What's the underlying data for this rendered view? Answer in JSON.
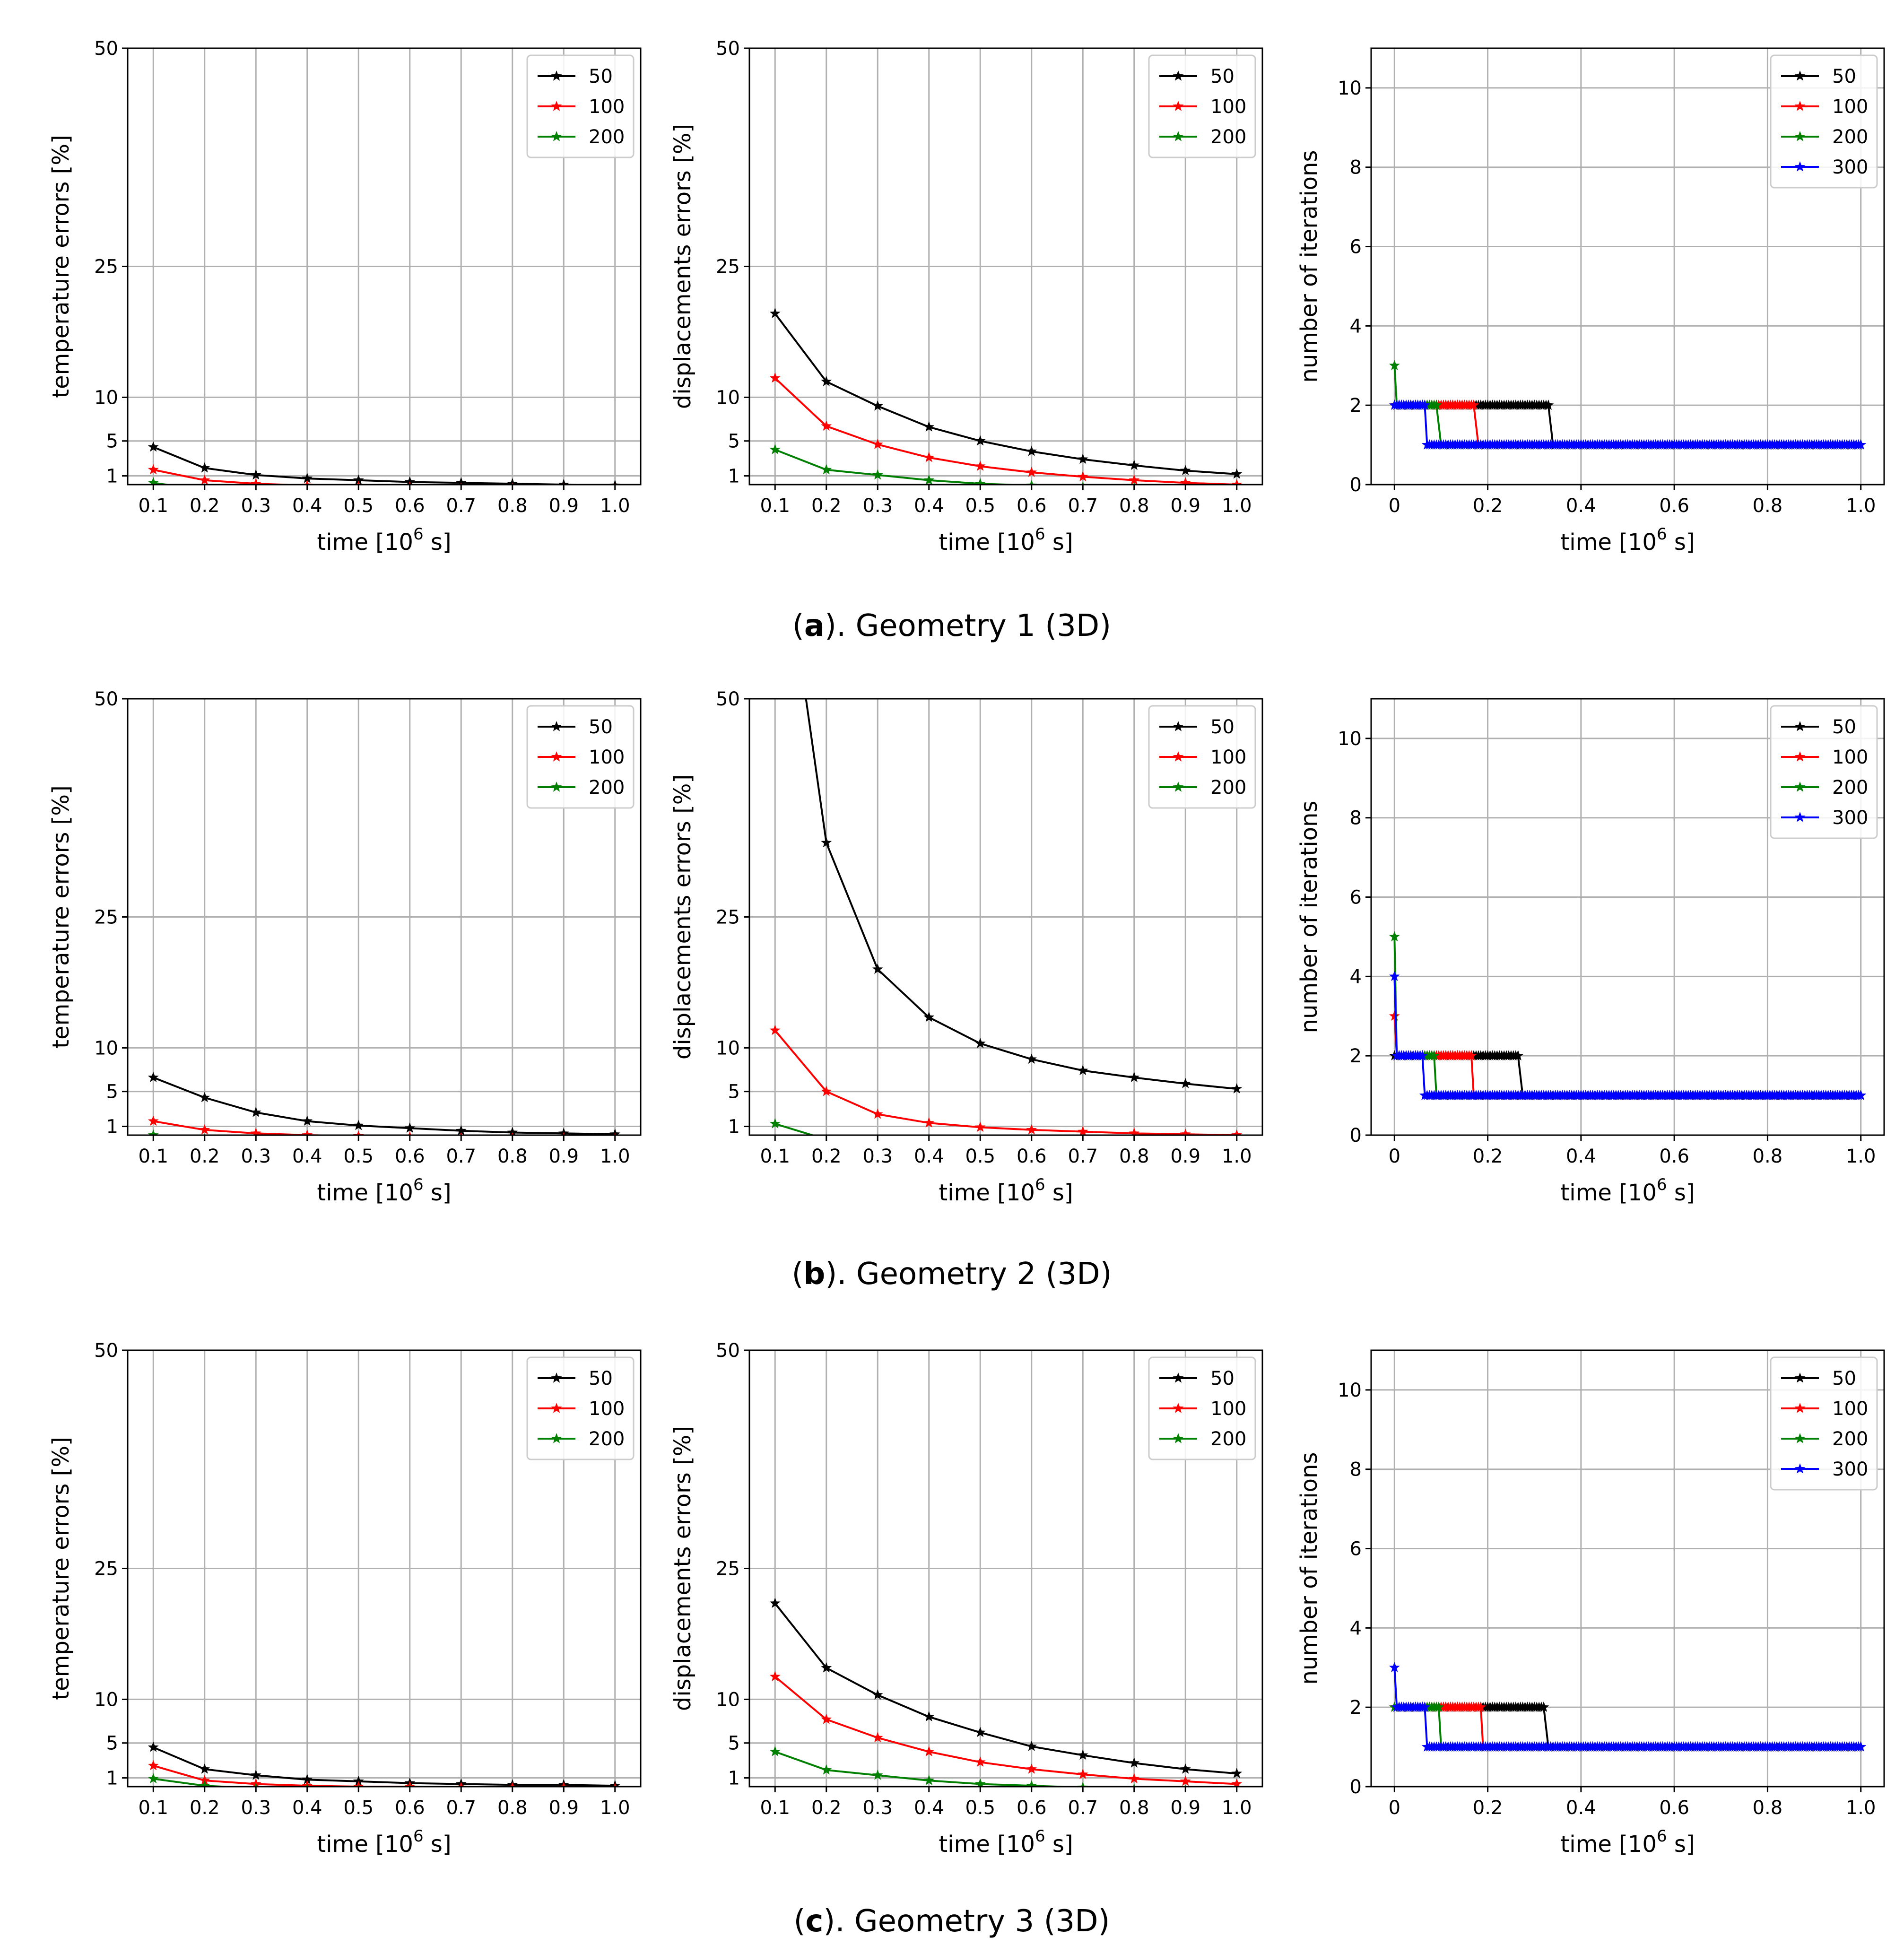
{
  "colors": {
    "50": "#000000",
    "100": "#ff0000",
    "200": "#008000",
    "300": "#0000ff"
  },
  "legend_labels": [
    "50",
    "100",
    "200",
    "300"
  ],
  "axis_text": {
    "temperature_ylabel": "temperature errors [%]",
    "displacement_ylabel": "displacements errors [%]",
    "iterations_ylabel": "number of iterations",
    "xlabel_prefix": "time [10",
    "xlabel_exponent": "6",
    "xlabel_suffix": " s]"
  },
  "captions": [
    {
      "letter": "a",
      "text": "). Geometry 1 (3D)"
    },
    {
      "letter": "b",
      "text": "). Geometry 2 (3D)"
    },
    {
      "letter": "c",
      "text": "). Geometry 3 (3D)"
    }
  ],
  "chart_data": [
    {
      "type": "line",
      "panel": "a-temperature",
      "xlabel": "time [10^6 s]",
      "ylabel": "temperature errors [%]",
      "xlim": [
        0.05,
        1.05
      ],
      "ylim": [
        0,
        50
      ],
      "x_ticks": [
        0.1,
        0.2,
        0.3,
        0.4,
        0.5,
        0.6,
        0.7,
        0.8,
        0.9,
        1.0
      ],
      "x_tick_labels": [
        "0.1",
        "0.2",
        "0.3",
        "0.4",
        "0.5",
        "0.6",
        "0.7",
        "0.8",
        "0.9",
        "1.0"
      ],
      "y_ticks": [
        1,
        5,
        10,
        25,
        50
      ],
      "y_tick_labels": [
        "1",
        "5",
        "10",
        "25",
        "50"
      ],
      "grid": true,
      "legend": "top-right",
      "x": [
        0.1,
        0.2,
        0.3,
        0.4,
        0.5,
        0.6,
        0.7,
        0.8,
        0.9,
        1.0
      ],
      "series": [
        {
          "name": "50",
          "color": "#000000",
          "values": [
            4.3,
            1.9,
            1.1,
            0.7,
            0.5,
            0.3,
            0.2,
            0.1,
            0.0,
            -0.1
          ]
        },
        {
          "name": "100",
          "color": "#ff0000",
          "values": [
            1.7,
            0.5,
            0.1,
            -0.1,
            -0.2,
            -0.3,
            -0.4,
            -0.4,
            -0.5,
            -0.5
          ]
        },
        {
          "name": "200",
          "color": "#008000",
          "values": [
            0.2,
            -0.6,
            -0.8,
            -0.9,
            -1.0,
            -1.0,
            -1.1,
            -1.1,
            -1.1,
            -1.2
          ]
        }
      ]
    },
    {
      "type": "line",
      "panel": "a-displacements",
      "xlabel": "time [10^6 s]",
      "ylabel": "displacements errors [%]",
      "xlim": [
        0.05,
        1.05
      ],
      "ylim": [
        0,
        50
      ],
      "x_ticks": [
        0.1,
        0.2,
        0.3,
        0.4,
        0.5,
        0.6,
        0.7,
        0.8,
        0.9,
        1.0
      ],
      "x_tick_labels": [
        "0.1",
        "0.2",
        "0.3",
        "0.4",
        "0.5",
        "0.6",
        "0.7",
        "0.8",
        "0.9",
        "1.0"
      ],
      "y_ticks": [
        1,
        5,
        10,
        25,
        50
      ],
      "y_tick_labels": [
        "1",
        "5",
        "10",
        "25",
        "50"
      ],
      "grid": true,
      "legend": "top-right",
      "x": [
        0.1,
        0.2,
        0.3,
        0.4,
        0.5,
        0.6,
        0.7,
        0.8,
        0.9,
        1.0
      ],
      "series": [
        {
          "name": "50",
          "color": "#000000",
          "values": [
            19.6,
            11.8,
            9.0,
            6.6,
            5.0,
            3.8,
            2.9,
            2.2,
            1.6,
            1.2
          ]
        },
        {
          "name": "100",
          "color": "#ff0000",
          "values": [
            12.2,
            6.7,
            4.6,
            3.1,
            2.1,
            1.4,
            0.9,
            0.5,
            0.2,
            0.0
          ]
        },
        {
          "name": "200",
          "color": "#008000",
          "values": [
            4.0,
            1.7,
            1.1,
            0.5,
            0.1,
            -0.1,
            -0.3,
            -0.4,
            -0.5,
            -0.6
          ]
        }
      ]
    },
    {
      "type": "line",
      "panel": "a-iterations",
      "xlabel": "time [10^6 s]",
      "ylabel": "number of iterations",
      "xlim": [
        -0.05,
        1.05
      ],
      "ylim": [
        0,
        11
      ],
      "x_ticks": [
        0,
        0.2,
        0.4,
        0.6,
        0.8,
        1.0
      ],
      "x_tick_labels": [
        "0",
        "0.2",
        "0.4",
        "0.6",
        "0.8",
        "1.0"
      ],
      "y_ticks": [
        0,
        2,
        4,
        6,
        8,
        10
      ],
      "y_tick_labels": [
        "0",
        "2",
        "4",
        "6",
        "8",
        "10"
      ],
      "grid": true,
      "legend": "top-right",
      "series": [
        {
          "name": "50",
          "color": "#000000",
          "points": [
            [
              0.0,
              2
            ],
            [
              0.33,
              2
            ],
            [
              0.34,
              1
            ],
            [
              1.0,
              1
            ]
          ]
        },
        {
          "name": "100",
          "color": "#ff0000",
          "points": [
            [
              0.0,
              2
            ],
            [
              0.17,
              2
            ],
            [
              0.18,
              1
            ],
            [
              1.0,
              1
            ]
          ]
        },
        {
          "name": "200",
          "color": "#008000",
          "points": [
            [
              0.0,
              3
            ],
            [
              0.005,
              2
            ],
            [
              0.09,
              2
            ],
            [
              0.1,
              1
            ],
            [
              1.0,
              1
            ]
          ]
        },
        {
          "name": "300",
          "color": "#0000ff",
          "points": [
            [
              0.0,
              2
            ],
            [
              0.065,
              2
            ],
            [
              0.07,
              1
            ],
            [
              1.0,
              1
            ]
          ]
        }
      ]
    },
    {
      "type": "line",
      "panel": "b-temperature",
      "xlabel": "time [10^6 s]",
      "ylabel": "temperature errors [%]",
      "xlim": [
        0.05,
        1.05
      ],
      "ylim": [
        0,
        50
      ],
      "x_ticks": [
        0.1,
        0.2,
        0.3,
        0.4,
        0.5,
        0.6,
        0.7,
        0.8,
        0.9,
        1.0
      ],
      "x_tick_labels": [
        "0.1",
        "0.2",
        "0.3",
        "0.4",
        "0.5",
        "0.6",
        "0.7",
        "0.8",
        "0.9",
        "1.0"
      ],
      "y_ticks": [
        1,
        5,
        10,
        25,
        50
      ],
      "y_tick_labels": [
        "1",
        "5",
        "10",
        "25",
        "50"
      ],
      "grid": true,
      "legend": "top-right",
      "x": [
        0.1,
        0.2,
        0.3,
        0.4,
        0.5,
        0.6,
        0.7,
        0.8,
        0.9,
        1.0
      ],
      "series": [
        {
          "name": "50",
          "color": "#000000",
          "values": [
            6.6,
            4.3,
            2.6,
            1.6,
            1.1,
            0.8,
            0.5,
            0.3,
            0.2,
            0.1
          ]
        },
        {
          "name": "100",
          "color": "#ff0000",
          "values": [
            1.6,
            0.6,
            0.2,
            0.0,
            -0.1,
            -0.2,
            -0.3,
            -0.3,
            -0.3,
            -0.4
          ]
        },
        {
          "name": "200",
          "color": "#008000",
          "values": [
            0.0,
            -0.5,
            -0.6,
            -0.6,
            -0.7,
            -0.7,
            -0.7,
            -0.7,
            -0.7,
            -0.7
          ]
        }
      ]
    },
    {
      "type": "line",
      "panel": "b-displacements",
      "xlabel": "time [10^6 s]",
      "ylabel": "displacements errors [%]",
      "xlim": [
        0.05,
        1.05
      ],
      "ylim": [
        0,
        50
      ],
      "x_ticks": [
        0.1,
        0.2,
        0.3,
        0.4,
        0.5,
        0.6,
        0.7,
        0.8,
        0.9,
        1.0
      ],
      "x_tick_labels": [
        "0.1",
        "0.2",
        "0.3",
        "0.4",
        "0.5",
        "0.6",
        "0.7",
        "0.8",
        "0.9",
        "1.0"
      ],
      "y_ticks": [
        1,
        5,
        10,
        25,
        50
      ],
      "y_tick_labels": [
        "1",
        "5",
        "10",
        "25",
        "50"
      ],
      "grid": true,
      "legend": "top-right",
      "x": [
        0.1,
        0.2,
        0.3,
        0.4,
        0.5,
        0.6,
        0.7,
        0.8,
        0.9,
        1.0
      ],
      "series": [
        {
          "name": "50",
          "color": "#000000",
          "values": [
            75.0,
            33.5,
            19.0,
            13.5,
            10.5,
            8.7,
            7.4,
            6.6,
            5.9,
            5.3
          ]
        },
        {
          "name": "100",
          "color": "#ff0000",
          "values": [
            12.0,
            5.0,
            2.4,
            1.4,
            0.9,
            0.6,
            0.4,
            0.2,
            0.1,
            0.0
          ]
        },
        {
          "name": "200",
          "color": "#008000",
          "values": [
            1.3,
            -0.5,
            -0.6,
            -0.7,
            -0.7,
            -0.7,
            -0.7,
            -0.7,
            -0.7,
            -0.7
          ]
        }
      ]
    },
    {
      "type": "line",
      "panel": "b-iterations",
      "xlabel": "time [10^6 s]",
      "ylabel": "number of iterations",
      "xlim": [
        -0.05,
        1.05
      ],
      "ylim": [
        0,
        11
      ],
      "x_ticks": [
        0,
        0.2,
        0.4,
        0.6,
        0.8,
        1.0
      ],
      "x_tick_labels": [
        "0",
        "0.2",
        "0.4",
        "0.6",
        "0.8",
        "1.0"
      ],
      "y_ticks": [
        0,
        2,
        4,
        6,
        8,
        10
      ],
      "y_tick_labels": [
        "0",
        "2",
        "4",
        "6",
        "8",
        "10"
      ],
      "grid": true,
      "legend": "top-right",
      "series": [
        {
          "name": "50",
          "color": "#000000",
          "points": [
            [
              0.0,
              2
            ],
            [
              0.265,
              2
            ],
            [
              0.275,
              1
            ],
            [
              1.0,
              1
            ]
          ]
        },
        {
          "name": "100",
          "color": "#ff0000",
          "points": [
            [
              0.0,
              3
            ],
            [
              0.005,
              2
            ],
            [
              0.165,
              2
            ],
            [
              0.17,
              1
            ],
            [
              1.0,
              1
            ]
          ]
        },
        {
          "name": "200",
          "color": "#008000",
          "points": [
            [
              0.0,
              5
            ],
            [
              0.005,
              2
            ],
            [
              0.085,
              2
            ],
            [
              0.09,
              1
            ],
            [
              1.0,
              1
            ]
          ]
        },
        {
          "name": "300",
          "color": "#0000ff",
          "points": [
            [
              0.0,
              4
            ],
            [
              0.005,
              2
            ],
            [
              0.06,
              2
            ],
            [
              0.065,
              1
            ],
            [
              1.0,
              1
            ]
          ]
        }
      ]
    },
    {
      "type": "line",
      "panel": "c-temperature",
      "xlabel": "time [10^6 s]",
      "ylabel": "temperature errors [%]",
      "xlim": [
        0.05,
        1.05
      ],
      "ylim": [
        0,
        50
      ],
      "x_ticks": [
        0.1,
        0.2,
        0.3,
        0.4,
        0.5,
        0.6,
        0.7,
        0.8,
        0.9,
        1.0
      ],
      "x_tick_labels": [
        "0.1",
        "0.2",
        "0.3",
        "0.4",
        "0.5",
        "0.6",
        "0.7",
        "0.8",
        "0.9",
        "1.0"
      ],
      "y_ticks": [
        1,
        5,
        10,
        25,
        50
      ],
      "y_tick_labels": [
        "1",
        "5",
        "10",
        "25",
        "50"
      ],
      "grid": true,
      "legend": "top-right",
      "x": [
        0.1,
        0.2,
        0.3,
        0.4,
        0.5,
        0.6,
        0.7,
        0.8,
        0.9,
        1.0
      ],
      "series": [
        {
          "name": "50",
          "color": "#000000",
          "values": [
            4.5,
            2.0,
            1.3,
            0.8,
            0.6,
            0.4,
            0.3,
            0.2,
            0.2,
            0.1
          ]
        },
        {
          "name": "100",
          "color": "#ff0000",
          "values": [
            2.4,
            0.7,
            0.3,
            0.1,
            0.0,
            0.0,
            -0.1,
            -0.1,
            -0.1,
            -0.2
          ]
        },
        {
          "name": "200",
          "color": "#008000",
          "values": [
            0.9,
            0.1,
            -0.2,
            -0.3,
            -0.4,
            -0.4,
            -0.5,
            -0.5,
            -0.5,
            -0.5
          ]
        }
      ]
    },
    {
      "type": "line",
      "panel": "c-displacements",
      "xlabel": "time [10^6 s]",
      "ylabel": "displacements errors [%]",
      "xlim": [
        0.05,
        1.05
      ],
      "ylim": [
        0,
        50
      ],
      "x_ticks": [
        0.1,
        0.2,
        0.3,
        0.4,
        0.5,
        0.6,
        0.7,
        0.8,
        0.9,
        1.0
      ],
      "x_tick_labels": [
        "0.1",
        "0.2",
        "0.3",
        "0.4",
        "0.5",
        "0.6",
        "0.7",
        "0.8",
        "0.9",
        "1.0"
      ],
      "y_ticks": [
        1,
        5,
        10,
        25,
        50
      ],
      "y_tick_labels": [
        "1",
        "5",
        "10",
        "25",
        "50"
      ],
      "grid": true,
      "legend": "top-right",
      "x": [
        0.1,
        0.2,
        0.3,
        0.4,
        0.5,
        0.6,
        0.7,
        0.8,
        0.9,
        1.0
      ],
      "series": [
        {
          "name": "50",
          "color": "#000000",
          "values": [
            21.0,
            13.6,
            10.5,
            8.0,
            6.2,
            4.6,
            3.6,
            2.7,
            2.0,
            1.5
          ]
        },
        {
          "name": "100",
          "color": "#ff0000",
          "values": [
            12.6,
            7.7,
            5.6,
            4.0,
            2.8,
            2.0,
            1.4,
            0.9,
            0.6,
            0.3
          ]
        },
        {
          "name": "200",
          "color": "#008000",
          "values": [
            4.0,
            1.9,
            1.3,
            0.7,
            0.3,
            0.1,
            -0.1,
            -0.3,
            -0.4,
            -0.5
          ]
        }
      ]
    },
    {
      "type": "line",
      "panel": "c-iterations",
      "xlabel": "time [10^6 s]",
      "ylabel": "number of iterations",
      "xlim": [
        -0.05,
        1.05
      ],
      "ylim": [
        0,
        11
      ],
      "x_ticks": [
        0,
        0.2,
        0.4,
        0.6,
        0.8,
        1.0
      ],
      "x_tick_labels": [
        "0",
        "0.2",
        "0.4",
        "0.6",
        "0.8",
        "1.0"
      ],
      "y_ticks": [
        0,
        2,
        4,
        6,
        8,
        10
      ],
      "y_tick_labels": [
        "0",
        "2",
        "4",
        "6",
        "8",
        "10"
      ],
      "grid": true,
      "legend": "top-right",
      "series": [
        {
          "name": "50",
          "color": "#000000",
          "points": [
            [
              0.0,
              2
            ],
            [
              0.32,
              2
            ],
            [
              0.33,
              1
            ],
            [
              1.0,
              1
            ]
          ]
        },
        {
          "name": "100",
          "color": "#ff0000",
          "points": [
            [
              0.0,
              2
            ],
            [
              0.185,
              2
            ],
            [
              0.19,
              1
            ],
            [
              1.0,
              1
            ]
          ]
        },
        {
          "name": "200",
          "color": "#008000",
          "points": [
            [
              0.0,
              2
            ],
            [
              0.095,
              2
            ],
            [
              0.1,
              1
            ],
            [
              1.0,
              1
            ]
          ]
        },
        {
          "name": "300",
          "color": "#0000ff",
          "points": [
            [
              0.0,
              3
            ],
            [
              0.005,
              2
            ],
            [
              0.065,
              2
            ],
            [
              0.07,
              1
            ],
            [
              1.0,
              1
            ]
          ]
        }
      ]
    }
  ]
}
